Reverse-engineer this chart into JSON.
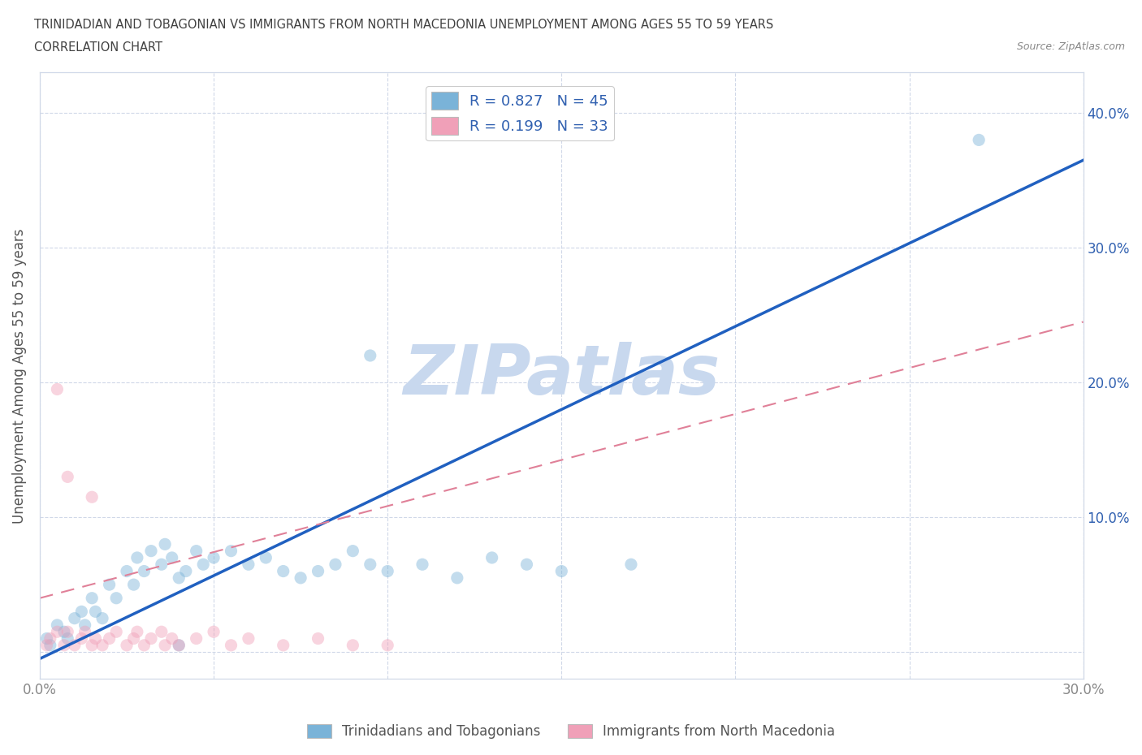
{
  "title_line1": "TRINIDADIAN AND TOBAGONIAN VS IMMIGRANTS FROM NORTH MACEDONIA UNEMPLOYMENT AMONG AGES 55 TO 59 YEARS",
  "title_line2": "CORRELATION CHART",
  "source": "Source: ZipAtlas.com",
  "ylabel": "Unemployment Among Ages 55 to 59 years",
  "watermark": "ZIPatlas",
  "xlim": [
    0.0,
    0.3
  ],
  "ylim": [
    -0.02,
    0.43
  ],
  "xticks": [
    0.0,
    0.05,
    0.1,
    0.15,
    0.2,
    0.25,
    0.3
  ],
  "yticks": [
    0.0,
    0.1,
    0.2,
    0.3,
    0.4
  ],
  "ytick_labels_right": [
    "",
    "10.0%",
    "20.0%",
    "30.0%",
    "40.0%"
  ],
  "xtick_labels": [
    "0.0%",
    "",
    "",
    "",
    "",
    "",
    "30.0%"
  ],
  "blue_scatter": [
    [
      0.002,
      0.01
    ],
    [
      0.003,
      0.005
    ],
    [
      0.005,
      0.02
    ],
    [
      0.007,
      0.015
    ],
    [
      0.008,
      0.01
    ],
    [
      0.01,
      0.025
    ],
    [
      0.012,
      0.03
    ],
    [
      0.013,
      0.02
    ],
    [
      0.015,
      0.04
    ],
    [
      0.016,
      0.03
    ],
    [
      0.018,
      0.025
    ],
    [
      0.02,
      0.05
    ],
    [
      0.022,
      0.04
    ],
    [
      0.025,
      0.06
    ],
    [
      0.027,
      0.05
    ],
    [
      0.028,
      0.07
    ],
    [
      0.03,
      0.06
    ],
    [
      0.032,
      0.075
    ],
    [
      0.035,
      0.065
    ],
    [
      0.036,
      0.08
    ],
    [
      0.038,
      0.07
    ],
    [
      0.04,
      0.055
    ],
    [
      0.042,
      0.06
    ],
    [
      0.045,
      0.075
    ],
    [
      0.047,
      0.065
    ],
    [
      0.05,
      0.07
    ],
    [
      0.055,
      0.075
    ],
    [
      0.06,
      0.065
    ],
    [
      0.065,
      0.07
    ],
    [
      0.07,
      0.06
    ],
    [
      0.075,
      0.055
    ],
    [
      0.08,
      0.06
    ],
    [
      0.085,
      0.065
    ],
    [
      0.09,
      0.075
    ],
    [
      0.095,
      0.065
    ],
    [
      0.1,
      0.06
    ],
    [
      0.11,
      0.065
    ],
    [
      0.12,
      0.055
    ],
    [
      0.13,
      0.07
    ],
    [
      0.14,
      0.065
    ],
    [
      0.15,
      0.06
    ],
    [
      0.17,
      0.065
    ],
    [
      0.095,
      0.22
    ],
    [
      0.27,
      0.38
    ],
    [
      0.04,
      0.005
    ]
  ],
  "pink_scatter": [
    [
      0.002,
      0.005
    ],
    [
      0.003,
      0.01
    ],
    [
      0.005,
      0.015
    ],
    [
      0.007,
      0.005
    ],
    [
      0.008,
      0.015
    ],
    [
      0.01,
      0.005
    ],
    [
      0.012,
      0.01
    ],
    [
      0.013,
      0.015
    ],
    [
      0.015,
      0.005
    ],
    [
      0.016,
      0.01
    ],
    [
      0.018,
      0.005
    ],
    [
      0.02,
      0.01
    ],
    [
      0.022,
      0.015
    ],
    [
      0.025,
      0.005
    ],
    [
      0.027,
      0.01
    ],
    [
      0.028,
      0.015
    ],
    [
      0.03,
      0.005
    ],
    [
      0.032,
      0.01
    ],
    [
      0.035,
      0.015
    ],
    [
      0.036,
      0.005
    ],
    [
      0.038,
      0.01
    ],
    [
      0.04,
      0.005
    ],
    [
      0.045,
      0.01
    ],
    [
      0.05,
      0.015
    ],
    [
      0.055,
      0.005
    ],
    [
      0.06,
      0.01
    ],
    [
      0.07,
      0.005
    ],
    [
      0.08,
      0.01
    ],
    [
      0.09,
      0.005
    ],
    [
      0.1,
      0.005
    ],
    [
      0.005,
      0.195
    ],
    [
      0.008,
      0.13
    ],
    [
      0.015,
      0.115
    ]
  ],
  "blue_line": {
    "x": [
      0.0,
      0.3
    ],
    "y": [
      -0.005,
      0.365
    ]
  },
  "pink_line": {
    "x": [
      0.0,
      0.3
    ],
    "y": [
      0.04,
      0.245
    ]
  },
  "blue_color": "#7ab3d8",
  "pink_color": "#f0a0b8",
  "blue_line_color": "#2060c0",
  "pink_line_color": "#e08098",
  "background_color": "#ffffff",
  "grid_color": "#d0d8e8",
  "title_color": "#404040",
  "axis_color": "#888888",
  "label_color": "#555555",
  "legend_text_color": "#3060b0",
  "watermark_color": "#c8d8ee",
  "scatter_size": 120,
  "scatter_alpha": 0.45
}
